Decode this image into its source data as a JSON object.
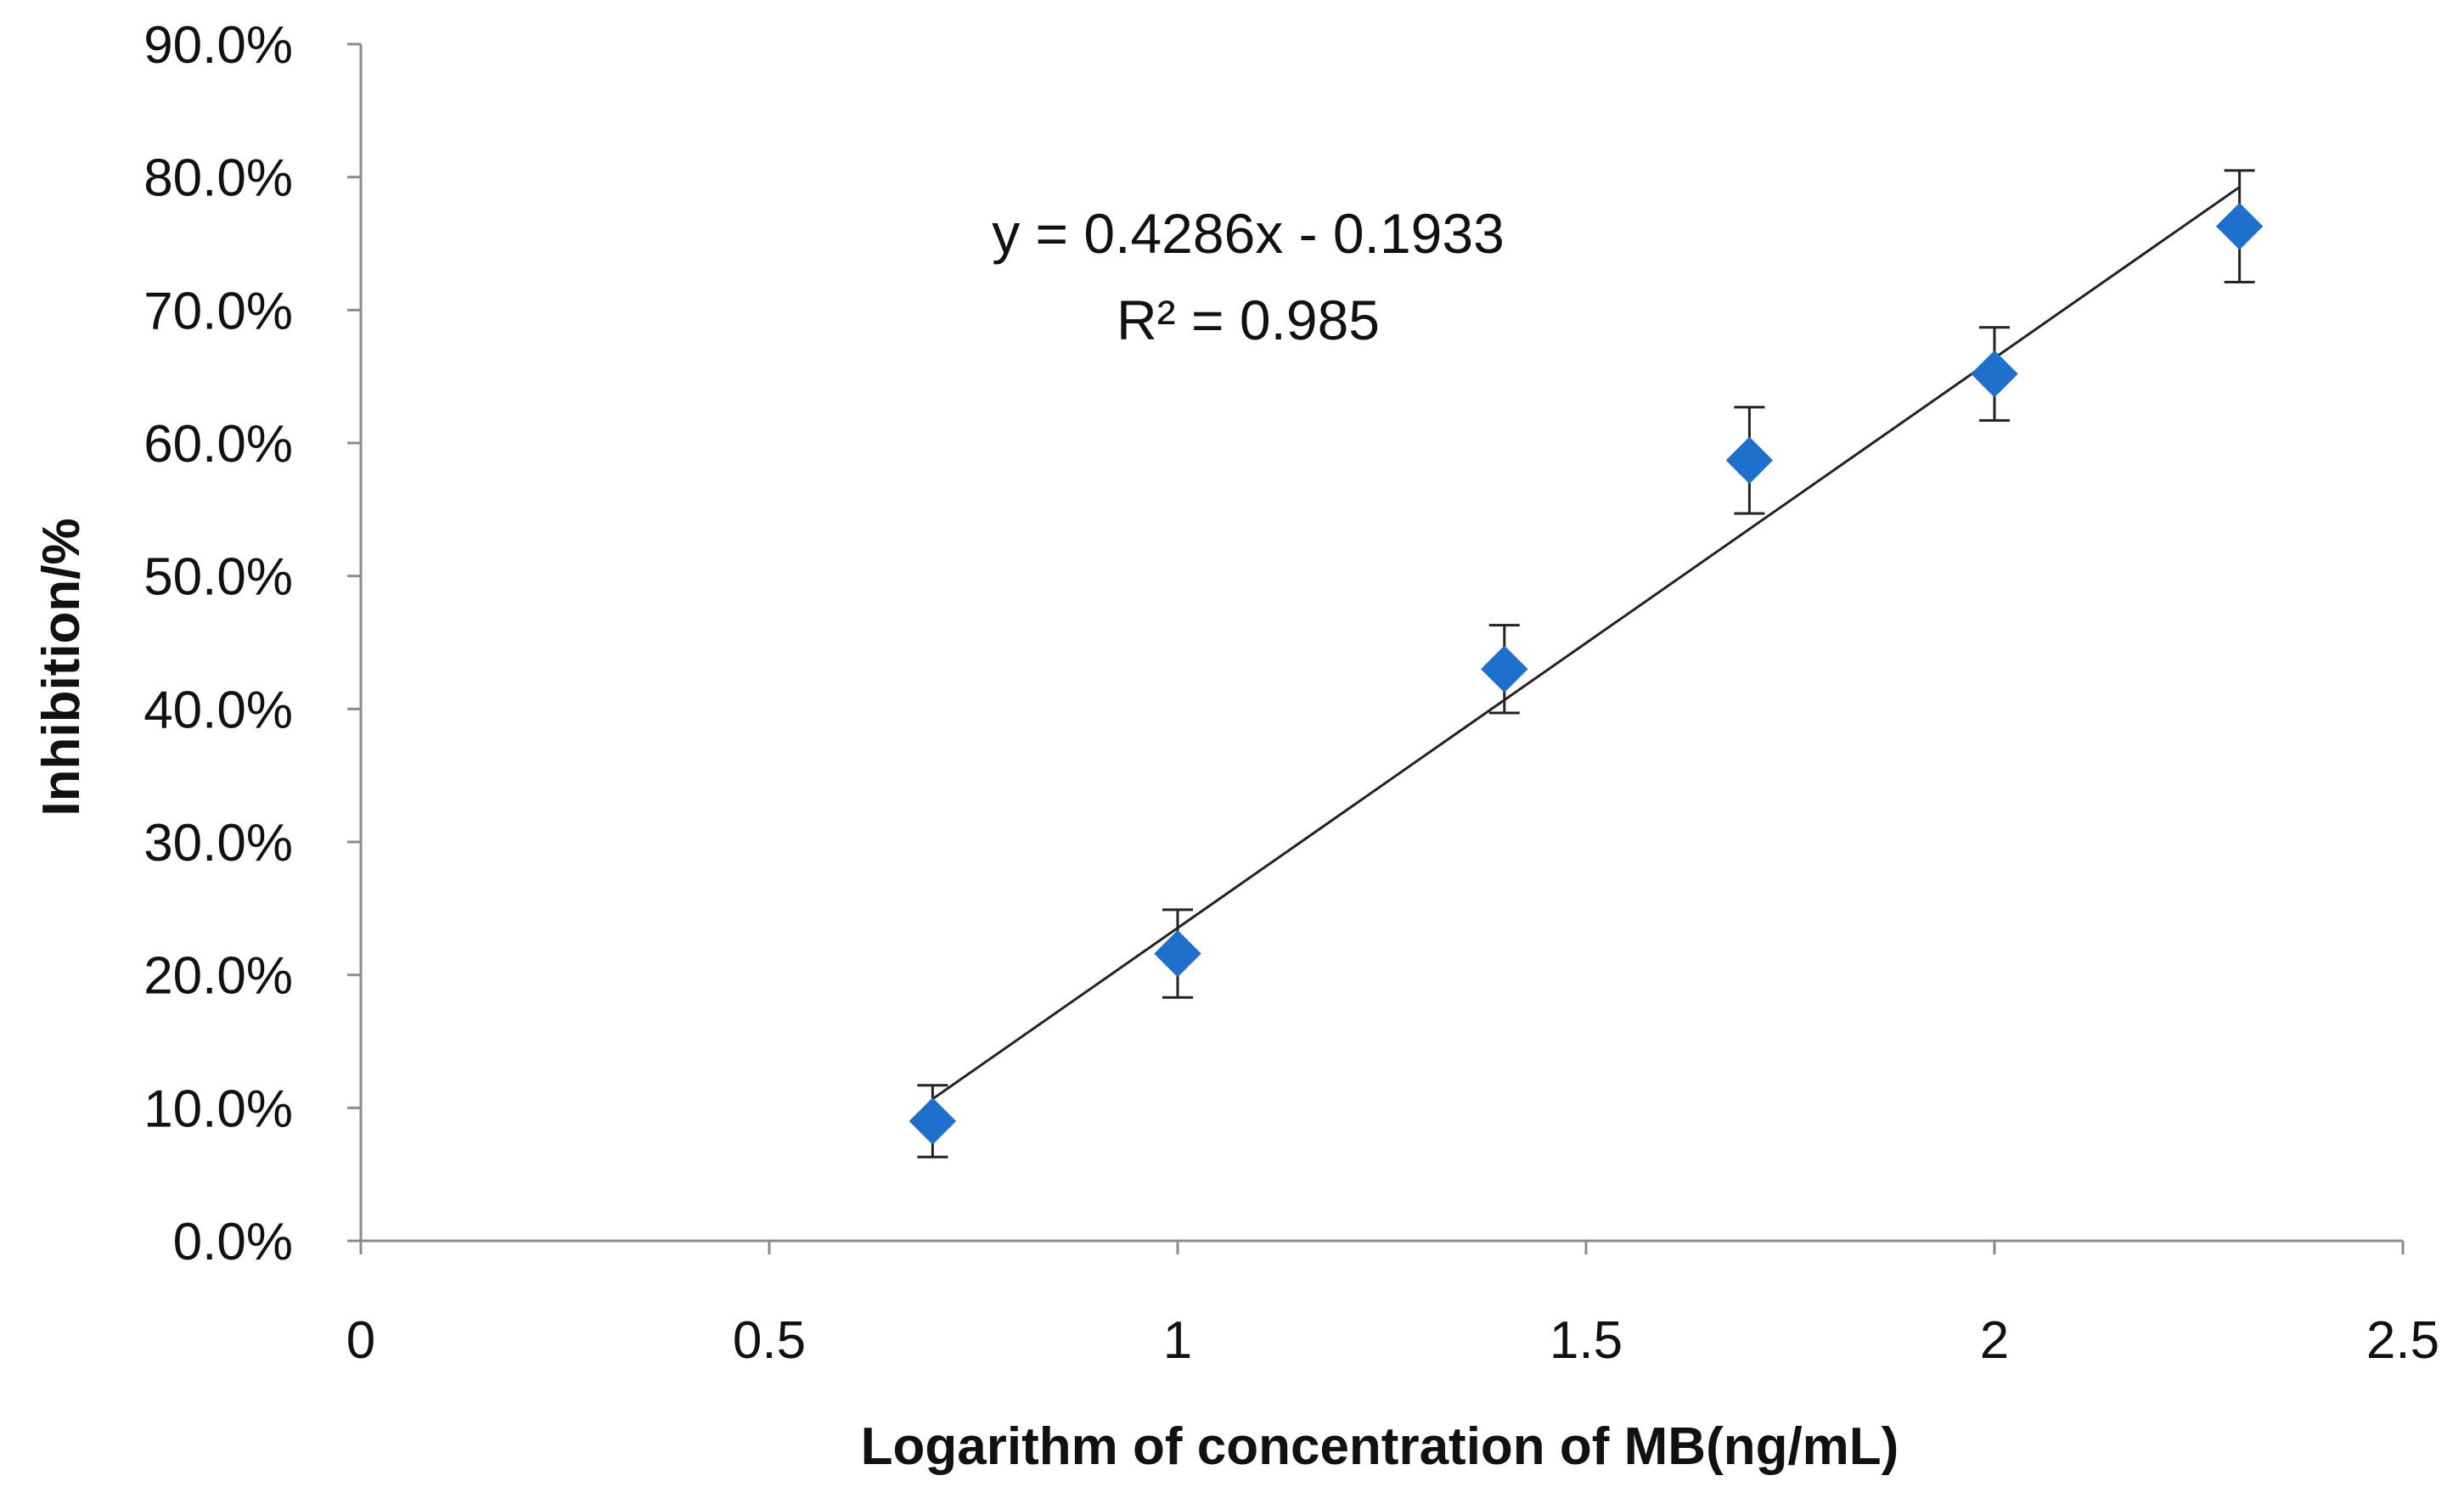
{
  "chart_data": {
    "type": "scatter",
    "title": "",
    "xlabel": "Logarithm of concentration of MB(ng/mL)",
    "ylabel": "Inhibition/%",
    "xlim": [
      0,
      2.5
    ],
    "ylim": [
      0,
      0.9
    ],
    "x_ticks": [
      0,
      0.5,
      1,
      1.5,
      2,
      2.5
    ],
    "x_tick_labels": [
      "0",
      "0.5",
      "1",
      "1.5",
      "2",
      "2.5"
    ],
    "y_ticks": [
      0,
      0.1,
      0.2,
      0.3,
      0.4,
      0.5,
      0.6,
      0.7,
      0.8,
      0.9
    ],
    "y_tick_labels": [
      "0.0%",
      "10.0%",
      "20.0%",
      "30.0%",
      "40.0%",
      "50.0%",
      "60.0%",
      "70.0%",
      "80.0%",
      "90.0%"
    ],
    "grid": false,
    "legend": "none",
    "series": [
      {
        "name": "Inhibition",
        "marker": "diamond",
        "color": "#1f6fcc",
        "x": [
          0.7,
          1.0,
          1.4,
          1.7,
          2.0,
          2.3
        ],
        "y": [
          0.09,
          0.216,
          0.43,
          0.587,
          0.652,
          0.763
        ],
        "error": [
          0.027,
          0.033,
          0.033,
          0.04,
          0.035,
          0.042
        ]
      }
    ],
    "trendline": {
      "slope": 0.4286,
      "intercept": -0.1933,
      "x_range": [
        0.7,
        2.3
      ],
      "color": "#222222"
    },
    "annotations": {
      "equation": "y = 0.4286x - 0.1933",
      "r_squared": "R² = 0.985"
    }
  }
}
